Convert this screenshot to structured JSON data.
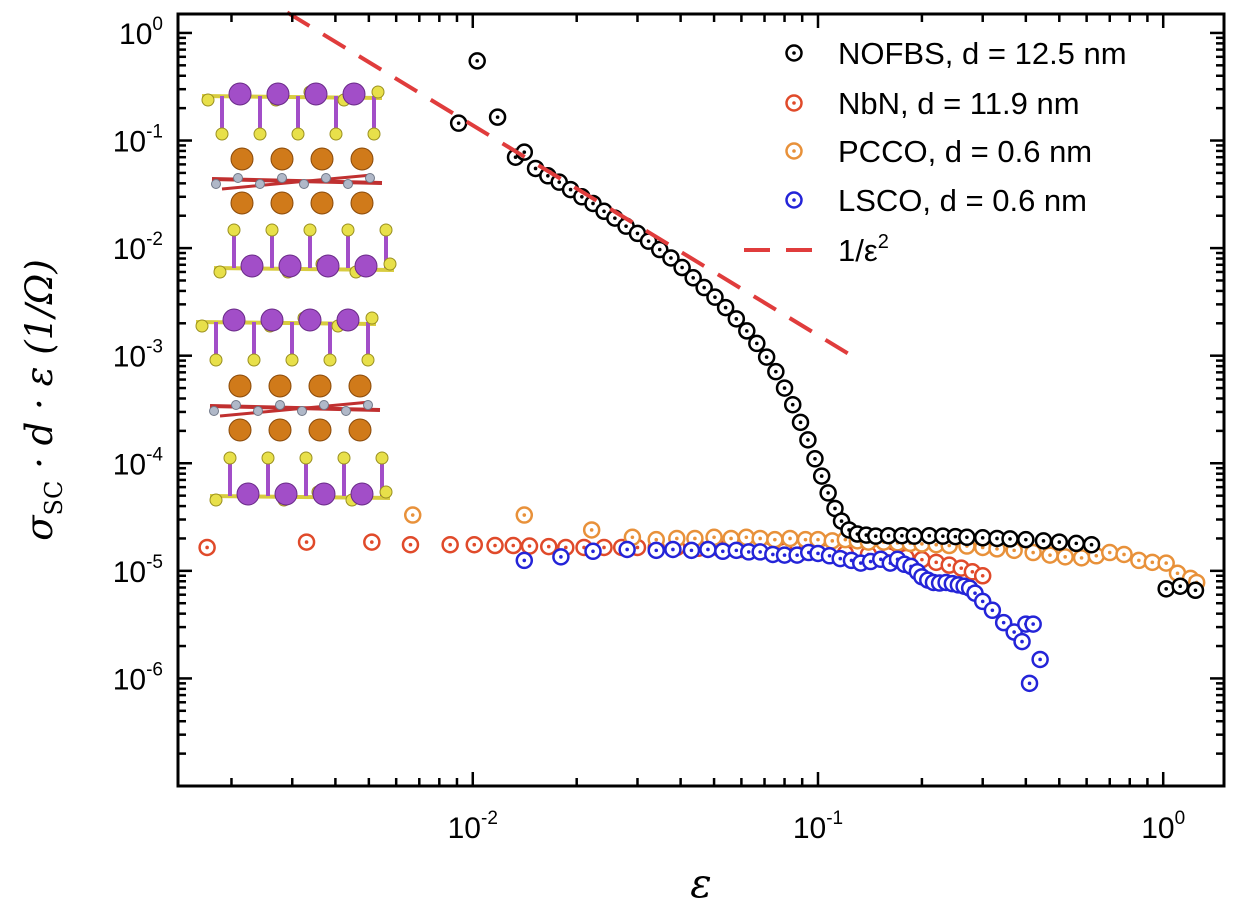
{
  "chart_data": {
    "type": "scatter",
    "title": "",
    "xlabel": "ε",
    "ylabel": {
      "text": "σ",
      "subscript": "SC",
      "rest": " · d · ε (1/Ω)"
    },
    "xscale": "log",
    "yscale": "log",
    "xlim": [
      0.0014,
      1.5
    ],
    "ylim": [
      1e-07,
      1.5
    ],
    "x_ticks": [
      {
        "value": 0.01,
        "base": "10",
        "exp": "-2"
      },
      {
        "value": 0.1,
        "base": "10",
        "exp": "-1"
      },
      {
        "value": 1,
        "base": "10",
        "exp": "0"
      }
    ],
    "y_ticks": [
      {
        "value": 1,
        "base": "10",
        "exp": "0"
      },
      {
        "value": 0.1,
        "base": "10",
        "exp": "-1"
      },
      {
        "value": 0.01,
        "base": "10",
        "exp": "-2"
      },
      {
        "value": 0.001,
        "base": "10",
        "exp": "-3"
      },
      {
        "value": 0.0001,
        "base": "10",
        "exp": "-4"
      },
      {
        "value": 1e-05,
        "base": "10",
        "exp": "-5"
      },
      {
        "value": 1e-06,
        "base": "10",
        "exp": "-6"
      }
    ],
    "legend_position": "top-right",
    "grid": false,
    "series": [
      {
        "name": "NOFBS, d = 12.5 nm",
        "color": "#000000",
        "marker": "circle-dot",
        "points": [
          [
            0.0091,
            0.145
          ],
          [
            0.0103,
            0.55
          ],
          [
            0.0118,
            0.165
          ],
          [
            0.0133,
            0.07
          ],
          [
            0.0141,
            0.078
          ],
          [
            0.0152,
            0.055
          ],
          [
            0.0165,
            0.047
          ],
          [
            0.0178,
            0.041
          ],
          [
            0.0192,
            0.035
          ],
          [
            0.0207,
            0.03
          ],
          [
            0.0223,
            0.026
          ],
          [
            0.024,
            0.022
          ],
          [
            0.0258,
            0.019
          ],
          [
            0.0278,
            0.016
          ],
          [
            0.03,
            0.0137
          ],
          [
            0.0323,
            0.0116
          ],
          [
            0.0348,
            0.0097
          ],
          [
            0.0375,
            0.0081
          ],
          [
            0.0404,
            0.0066
          ],
          [
            0.0435,
            0.0053
          ],
          [
            0.0468,
            0.0043
          ],
          [
            0.0503,
            0.0035
          ],
          [
            0.054,
            0.0028
          ],
          [
            0.058,
            0.0022
          ],
          [
            0.0622,
            0.0017
          ],
          [
            0.0665,
            0.0013
          ],
          [
            0.071,
            0.00097
          ],
          [
            0.0755,
            0.00071
          ],
          [
            0.08,
            0.0005
          ],
          [
            0.0845,
            0.00035
          ],
          [
            0.089,
            0.00024
          ],
          [
            0.0935,
            0.000165
          ],
          [
            0.098,
            0.00011
          ],
          [
            0.1025,
            7.6e-05
          ],
          [
            0.107,
            5.3e-05
          ],
          [
            0.112,
            3.8e-05
          ],
          [
            0.117,
            2.9e-05
          ],
          [
            0.123,
            2.4e-05
          ],
          [
            0.13,
            2.2e-05
          ],
          [
            0.138,
            2.15e-05
          ],
          [
            0.147,
            2.1e-05
          ],
          [
            0.16,
            2.12e-05
          ],
          [
            0.175,
            2.12e-05
          ],
          [
            0.19,
            2.1e-05
          ],
          [
            0.21,
            2.12e-05
          ],
          [
            0.23,
            2.1e-05
          ],
          [
            0.25,
            2.08e-05
          ],
          [
            0.27,
            2.05e-05
          ],
          [
            0.3,
            2.03e-05
          ],
          [
            0.33,
            2e-05
          ],
          [
            0.36,
            1.98e-05
          ],
          [
            0.4,
            1.95e-05
          ],
          [
            0.45,
            1.9e-05
          ],
          [
            0.5,
            1.85e-05
          ],
          [
            0.56,
            1.8e-05
          ],
          [
            0.62,
            1.75e-05
          ],
          [
            1.02,
            6.8e-06
          ],
          [
            1.12,
            7.2e-06
          ],
          [
            1.24,
            6.6e-06
          ]
        ]
      },
      {
        "name": "NbN,  d = 11.9 nm",
        "color": "#e04a2a",
        "marker": "circle-dot",
        "points": [
          [
            0.0017,
            1.65e-05
          ],
          [
            0.0033,
            1.85e-05
          ],
          [
            0.0051,
            1.85e-05
          ],
          [
            0.0066,
            1.75e-05
          ],
          [
            0.0086,
            1.75e-05
          ],
          [
            0.0101,
            1.75e-05
          ],
          [
            0.0116,
            1.72e-05
          ],
          [
            0.0131,
            1.72e-05
          ],
          [
            0.0146,
            1.7e-05
          ],
          [
            0.0166,
            1.68e-05
          ],
          [
            0.0186,
            1.65e-05
          ],
          [
            0.021,
            1.65e-05
          ],
          [
            0.024,
            1.65e-05
          ],
          [
            0.027,
            1.65e-05
          ],
          [
            0.03,
            1.65e-05
          ],
          [
            0.034,
            1.65e-05
          ],
          [
            0.039,
            1.65e-05
          ],
          [
            0.045,
            1.62e-05
          ],
          [
            0.052,
            1.6e-05
          ],
          [
            0.06,
            1.58e-05
          ],
          [
            0.07,
            1.55e-05
          ],
          [
            0.08,
            1.52e-05
          ],
          [
            0.092,
            1.5e-05
          ],
          [
            0.105,
            1.48e-05
          ],
          [
            0.12,
            1.45e-05
          ],
          [
            0.14,
            1.42e-05
          ],
          [
            0.16,
            1.38e-05
          ],
          [
            0.18,
            1.33e-05
          ],
          [
            0.2,
            1.27e-05
          ],
          [
            0.22,
            1.2e-05
          ],
          [
            0.24,
            1.13e-05
          ],
          [
            0.26,
            1.06e-05
          ],
          [
            0.28,
            9.8e-06
          ],
          [
            0.3,
            9e-06
          ]
        ]
      },
      {
        "name": "PCCO, d = 0.6 nm",
        "color": "#e8913a",
        "marker": "circle-dot",
        "points": [
          [
            0.0067,
            3.3e-05
          ],
          [
            0.0141,
            3.3e-05
          ],
          [
            0.0221,
            2.4e-05
          ],
          [
            0.029,
            2.05e-05
          ],
          [
            0.034,
            1.95e-05
          ],
          [
            0.039,
            2e-05
          ],
          [
            0.044,
            2e-05
          ],
          [
            0.05,
            2.05e-05
          ],
          [
            0.056,
            2e-05
          ],
          [
            0.062,
            2.05e-05
          ],
          [
            0.068,
            2e-05
          ],
          [
            0.075,
            1.95e-05
          ],
          [
            0.083,
            2e-05
          ],
          [
            0.092,
            1.95e-05
          ],
          [
            0.1,
            1.95e-05
          ],
          [
            0.11,
            1.9e-05
          ],
          [
            0.12,
            1.95e-05
          ],
          [
            0.13,
            1.9e-05
          ],
          [
            0.14,
            1.85e-05
          ],
          [
            0.155,
            1.85e-05
          ],
          [
            0.17,
            1.82e-05
          ],
          [
            0.185,
            1.8e-05
          ],
          [
            0.2,
            1.78e-05
          ],
          [
            0.22,
            1.75e-05
          ],
          [
            0.24,
            1.72e-05
          ],
          [
            0.27,
            1.7e-05
          ],
          [
            0.3,
            1.65e-05
          ],
          [
            0.33,
            1.6e-05
          ],
          [
            0.37,
            1.55e-05
          ],
          [
            0.42,
            1.48e-05
          ],
          [
            0.47,
            1.4e-05
          ],
          [
            0.52,
            1.35e-05
          ],
          [
            0.58,
            1.32e-05
          ],
          [
            0.64,
            1.38e-05
          ],
          [
            0.7,
            1.48e-05
          ],
          [
            0.77,
            1.42e-05
          ],
          [
            0.85,
            1.25e-05
          ],
          [
            0.93,
            1.2e-05
          ],
          [
            1.02,
            1.18e-05
          ],
          [
            1.1,
            9.5e-06
          ],
          [
            1.2,
            8.5e-06
          ],
          [
            1.25,
            7.8e-06
          ]
        ]
      },
      {
        "name": "LSCO, d = 0.6 nm",
        "color": "#2424d8",
        "marker": "circle-dot",
        "points": [
          [
            0.0141,
            1.25e-05
          ],
          [
            0.018,
            1.35e-05
          ],
          [
            0.0223,
            1.52e-05
          ],
          [
            0.028,
            1.58e-05
          ],
          [
            0.034,
            1.55e-05
          ],
          [
            0.038,
            1.58e-05
          ],
          [
            0.043,
            1.55e-05
          ],
          [
            0.048,
            1.58e-05
          ],
          [
            0.053,
            1.52e-05
          ],
          [
            0.058,
            1.55e-05
          ],
          [
            0.063,
            1.5e-05
          ],
          [
            0.068,
            1.5e-05
          ],
          [
            0.074,
            1.42e-05
          ],
          [
            0.08,
            1.4e-05
          ],
          [
            0.087,
            1.4e-05
          ],
          [
            0.094,
            1.48e-05
          ],
          [
            0.1,
            1.45e-05
          ],
          [
            0.108,
            1.38e-05
          ],
          [
            0.116,
            1.3e-05
          ],
          [
            0.125,
            1.25e-05
          ],
          [
            0.133,
            1.18e-05
          ],
          [
            0.142,
            1.22e-05
          ],
          [
            0.152,
            1.28e-05
          ],
          [
            0.162,
            1.18e-05
          ],
          [
            0.17,
            1.28e-05
          ],
          [
            0.178,
            1.15e-05
          ],
          [
            0.186,
            1.1e-05
          ],
          [
            0.194,
            9.8e-06
          ],
          [
            0.2,
            8.8e-06
          ],
          [
            0.208,
            8.2e-06
          ],
          [
            0.216,
            7.8e-06
          ],
          [
            0.225,
            7.7e-06
          ],
          [
            0.235,
            7.8e-06
          ],
          [
            0.245,
            7.6e-06
          ],
          [
            0.255,
            7.4e-06
          ],
          [
            0.265,
            7.2e-06
          ],
          [
            0.275,
            6.9e-06
          ],
          [
            0.285,
            6.2e-06
          ],
          [
            0.3,
            5.2e-06
          ],
          [
            0.32,
            4.3e-06
          ],
          [
            0.345,
            3.3e-06
          ],
          [
            0.37,
            2.7e-06
          ],
          [
            0.39,
            2.2e-06
          ],
          [
            0.4,
            3.2e-06
          ],
          [
            0.42,
            3.2e-06
          ],
          [
            0.44,
            1.5e-06
          ],
          [
            0.41,
            9e-07
          ]
        ]
      },
      {
        "name": "1/ε",
        "name_sup": "2",
        "color": "#e03c3c",
        "line_style": "dashed",
        "points": [
          [
            0.0029,
            1.55
          ],
          [
            0.122,
            0.00105
          ]
        ]
      }
    ]
  },
  "inset": {
    "name": "crystal-structure",
    "colors": {
      "purple": "#a24ec8",
      "yellow": "#e8e04a",
      "orange": "#d07a1a",
      "red": "#c03030",
      "grey": "#b0b8c8"
    }
  }
}
